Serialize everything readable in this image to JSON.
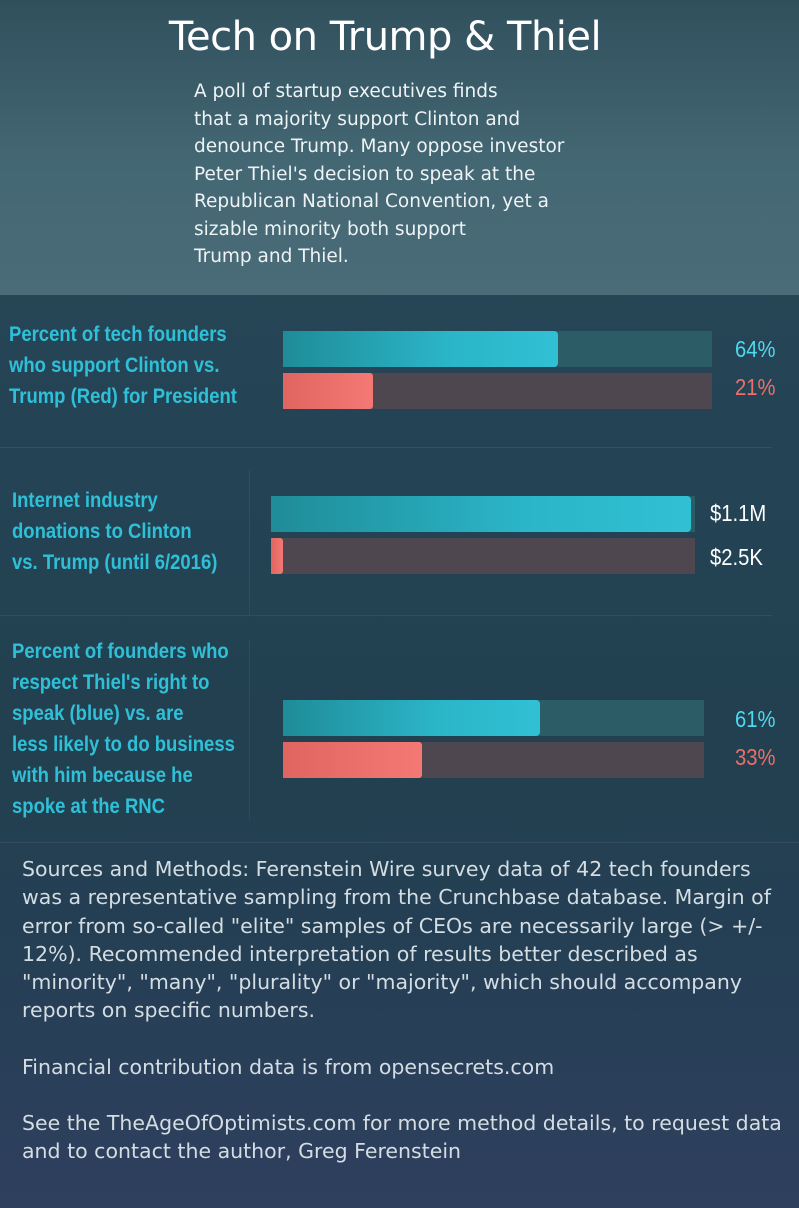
{
  "header": {
    "title": "Tech on Trump & Thiel",
    "subtitle": "A poll of startup executives finds\nthat a majority  support Clinton and\ndenounce Trump.  Many oppose investor\nPeter Thiel's decision to speak at the\nRepublican National Convention, yet a\nsizable  minority both support\nTrump and Thiel."
  },
  "chart_data": [
    {
      "type": "bar",
      "title": "Percent of tech founders\nwho support Clinton vs.\nTrump (Red) for President",
      "series": [
        {
          "value": 64,
          "label": "64%",
          "color": "#2bb5c8"
        },
        {
          "value": 21,
          "label": "21%",
          "color": "#f47873"
        }
      ],
      "xlim": [
        0,
        100
      ]
    },
    {
      "type": "bar",
      "title": "Internet industry\ndonations to Clinton\nvs. Trump (until 6/2016)",
      "series": [
        {
          "value": 1100000,
          "label": "$1.1M",
          "color": "#2bb5c8"
        },
        {
          "value": 2500,
          "label": "$2.5K",
          "color": "#f47873"
        }
      ],
      "xlim": [
        0,
        1110000
      ]
    },
    {
      "type": "bar",
      "title": "Percent of founders who\nrespect  Thiel's right to\nspeak (blue) vs. are\nless likely to do business\nwith him because he\nspoke at the RNC",
      "series": [
        {
          "value": 61,
          "label": "61%",
          "color": "#2bb5c8"
        },
        {
          "value": 33,
          "label": "33%",
          "color": "#f47873"
        }
      ],
      "xlim": [
        0,
        100
      ]
    }
  ],
  "footer": {
    "methods": "Sources and Methods: Ferenstein Wire survey data of 42 tech founders was a representative sampling from the Crunchbase database. Margin of error from so-called \"elite\" samples of CEOs are necessarily large (> +/- 12%). Recommended interpretation of results better described as \"minority\", \"many\", \"plurality\" or \"majority\", which should accompany reports on specific numbers.",
    "financial": "Financial contribution data is from opensecrets.com",
    "see": "See the TheAgeOfOptimists.com for more method details, to request data and to contact the author, Greg Ferenstein"
  }
}
